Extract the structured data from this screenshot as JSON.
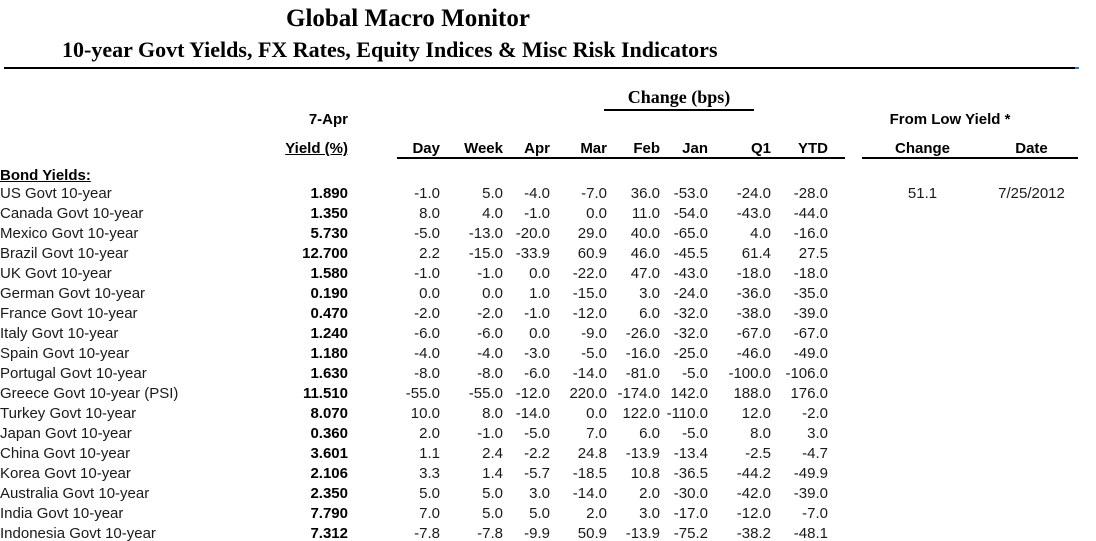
{
  "header": {
    "title": "Global Macro Monitor",
    "subtitle": "10-year Govt Yields, FX Rates, Equity Indices & Misc Risk Indicators"
  },
  "table": {
    "change_group_header": "Change (bps)",
    "from_low_group_header": "From Low Yield *",
    "yield_date_header": "7-Apr",
    "yield_header": "Yield (%)",
    "change_columns": [
      "Day",
      "Week",
      "Apr",
      "Mar",
      "Feb",
      "Jan",
      "Q1",
      "YTD"
    ],
    "from_low_columns": [
      "Change",
      "Date"
    ],
    "section_label": "Bond Yields:",
    "rows": [
      {
        "label": "US Govt 10-year",
        "yield": "1.890",
        "changes": [
          "-1.0",
          "5.0",
          "-4.0",
          "-7.0",
          "36.0",
          "-53.0",
          "-24.0",
          "-28.0"
        ],
        "from_low_change": "51.1",
        "from_low_date": "7/25/2012"
      },
      {
        "label": "Canada Govt 10-year",
        "yield": "1.350",
        "changes": [
          "8.0",
          "4.0",
          "-1.0",
          "0.0",
          "11.0",
          "-54.0",
          "-43.0",
          "-44.0"
        ],
        "from_low_change": "",
        "from_low_date": ""
      },
      {
        "label": "Mexico Govt 10-year",
        "yield": "5.730",
        "changes": [
          "-5.0",
          "-13.0",
          "-20.0",
          "29.0",
          "40.0",
          "-65.0",
          "4.0",
          "-16.0"
        ],
        "from_low_change": "",
        "from_low_date": ""
      },
      {
        "label": "Brazil Govt 10-year",
        "yield": "12.700",
        "changes": [
          "2.2",
          "-15.0",
          "-33.9",
          "60.9",
          "46.0",
          "-45.5",
          "61.4",
          "27.5"
        ],
        "from_low_change": "",
        "from_low_date": ""
      },
      {
        "label": "UK Govt 10-year",
        "yield": "1.580",
        "changes": [
          "-1.0",
          "-1.0",
          "0.0",
          "-22.0",
          "47.0",
          "-43.0",
          "-18.0",
          "-18.0"
        ],
        "from_low_change": "",
        "from_low_date": ""
      },
      {
        "label": "German Govt 10-year",
        "yield": "0.190",
        "changes": [
          "0.0",
          "0.0",
          "1.0",
          "-15.0",
          "3.0",
          "-24.0",
          "-36.0",
          "-35.0"
        ],
        "from_low_change": "",
        "from_low_date": ""
      },
      {
        "label": "France Govt 10-year",
        "yield": "0.470",
        "changes": [
          "-2.0",
          "-2.0",
          "-1.0",
          "-12.0",
          "6.0",
          "-32.0",
          "-38.0",
          "-39.0"
        ],
        "from_low_change": "",
        "from_low_date": ""
      },
      {
        "label": "Italy Govt 10-year",
        "yield": "1.240",
        "changes": [
          "-6.0",
          "-6.0",
          "0.0",
          "-9.0",
          "-26.0",
          "-32.0",
          "-67.0",
          "-67.0"
        ],
        "from_low_change": "",
        "from_low_date": ""
      },
      {
        "label": "Spain Govt 10-year",
        "yield": "1.180",
        "changes": [
          "-4.0",
          "-4.0",
          "-3.0",
          "-5.0",
          "-16.0",
          "-25.0",
          "-46.0",
          "-49.0"
        ],
        "from_low_change": "",
        "from_low_date": ""
      },
      {
        "label": "Portugal Govt 10-year",
        "yield": "1.630",
        "changes": [
          "-8.0",
          "-8.0",
          "-6.0",
          "-14.0",
          "-81.0",
          "-5.0",
          "-100.0",
          "-106.0"
        ],
        "from_low_change": "",
        "from_low_date": ""
      },
      {
        "label": "Greece Govt 10-year (PSI)",
        "yield": "11.510",
        "changes": [
          "-55.0",
          "-55.0",
          "-12.0",
          "220.0",
          "-174.0",
          "142.0",
          "188.0",
          "176.0"
        ],
        "from_low_change": "",
        "from_low_date": ""
      },
      {
        "label": "Turkey Govt 10-year",
        "yield": "8.070",
        "changes": [
          "10.0",
          "8.0",
          "-14.0",
          "0.0",
          "122.0",
          "-110.0",
          "12.0",
          "-2.0"
        ],
        "from_low_change": "",
        "from_low_date": ""
      },
      {
        "label": "Japan Govt 10-year",
        "yield": "0.360",
        "changes": [
          "2.0",
          "-1.0",
          "-5.0",
          "7.0",
          "6.0",
          "-5.0",
          "8.0",
          "3.0"
        ],
        "from_low_change": "",
        "from_low_date": ""
      },
      {
        "label": "China Govt 10-year",
        "yield": "3.601",
        "changes": [
          "1.1",
          "2.4",
          "-2.2",
          "24.8",
          "-13.9",
          "-13.4",
          "-2.5",
          "-4.7"
        ],
        "from_low_change": "",
        "from_low_date": ""
      },
      {
        "label": "Korea Govt 10-year",
        "yield": "2.106",
        "changes": [
          "3.3",
          "1.4",
          "-5.7",
          "-18.5",
          "10.8",
          "-36.5",
          "-44.2",
          "-49.9"
        ],
        "from_low_change": "",
        "from_low_date": ""
      },
      {
        "label": "Australia Govt 10-year",
        "yield": "2.350",
        "changes": [
          "5.0",
          "5.0",
          "3.0",
          "-14.0",
          "2.0",
          "-30.0",
          "-42.0",
          "-39.0"
        ],
        "from_low_change": "",
        "from_low_date": ""
      },
      {
        "label": "India Govt 10-year",
        "yield": "7.790",
        "changes": [
          "7.0",
          "5.0",
          "5.0",
          "2.0",
          "3.0",
          "-17.0",
          "-12.0",
          "-7.0"
        ],
        "from_low_change": "",
        "from_low_date": ""
      },
      {
        "label": "Indonesia Govt 10-year",
        "yield": "7.312",
        "changes": [
          "-7.8",
          "-7.8",
          "-9.9",
          "50.9",
          "-13.9",
          "-75.2",
          "-38.2",
          "-48.1"
        ],
        "from_low_change": "",
        "from_low_date": ""
      }
    ]
  }
}
